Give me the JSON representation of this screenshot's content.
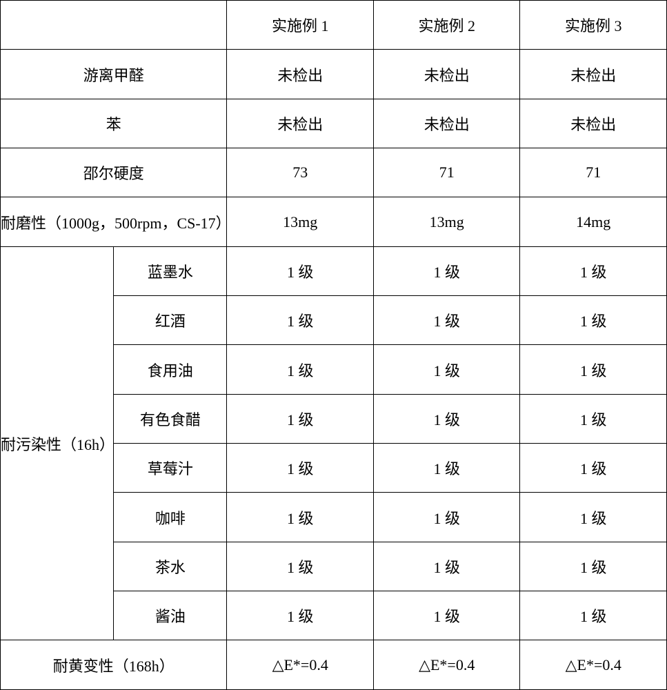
{
  "headers": {
    "example1": "实施例 1",
    "example2": "实施例 2",
    "example3": "实施例 3"
  },
  "rows": {
    "free_formaldehyde": {
      "label": "游离甲醛",
      "v1": "未检出",
      "v2": "未检出",
      "v3": "未检出"
    },
    "benzene": {
      "label": "苯",
      "v1": "未检出",
      "v2": "未检出",
      "v3": "未检出"
    },
    "shore_hardness": {
      "label": "邵尔硬度",
      "v1": "73",
      "v2": "71",
      "v3": "71"
    },
    "abrasion": {
      "label": "耐磨性（1000g，500rpm，CS-17）",
      "v1": "13mg",
      "v2": "13mg",
      "v3": "14mg"
    },
    "stain_resistance": {
      "group_label": "耐污染性（16h）",
      "items": {
        "blue_ink": {
          "label": "蓝墨水",
          "v1": "1 级",
          "v2": "1 级",
          "v3": "1 级"
        },
        "red_wine": {
          "label": "红酒",
          "v1": "1 级",
          "v2": "1 级",
          "v3": "1 级"
        },
        "edible_oil": {
          "label": "食用油",
          "v1": "1 级",
          "v2": "1 级",
          "v3": "1 级"
        },
        "colored_vinegar": {
          "label": "有色食醋",
          "v1": "1 级",
          "v2": "1 级",
          "v3": "1 级"
        },
        "strawberry_juice": {
          "label": "草莓汁",
          "v1": "1 级",
          "v2": "1 级",
          "v3": "1 级"
        },
        "coffee": {
          "label": "咖啡",
          "v1": "1 级",
          "v2": "1 级",
          "v3": "1 级"
        },
        "tea": {
          "label": "茶水",
          "v1": "1 级",
          "v2": "1 级",
          "v3": "1 级"
        },
        "soy_sauce": {
          "label": "酱油",
          "v1": "1 级",
          "v2": "1 级",
          "v3": "1 级"
        }
      }
    },
    "yellowing": {
      "label": "耐黄变性（168h）",
      "v1": "△E*=0.4",
      "v2": "△E*=0.4",
      "v3": "△E*=0.4"
    }
  },
  "style": {
    "font_family": "SimSun",
    "font_size_pt": 16,
    "border_color": "#000000",
    "background_color": "#ffffff",
    "text_color": "#000000"
  }
}
